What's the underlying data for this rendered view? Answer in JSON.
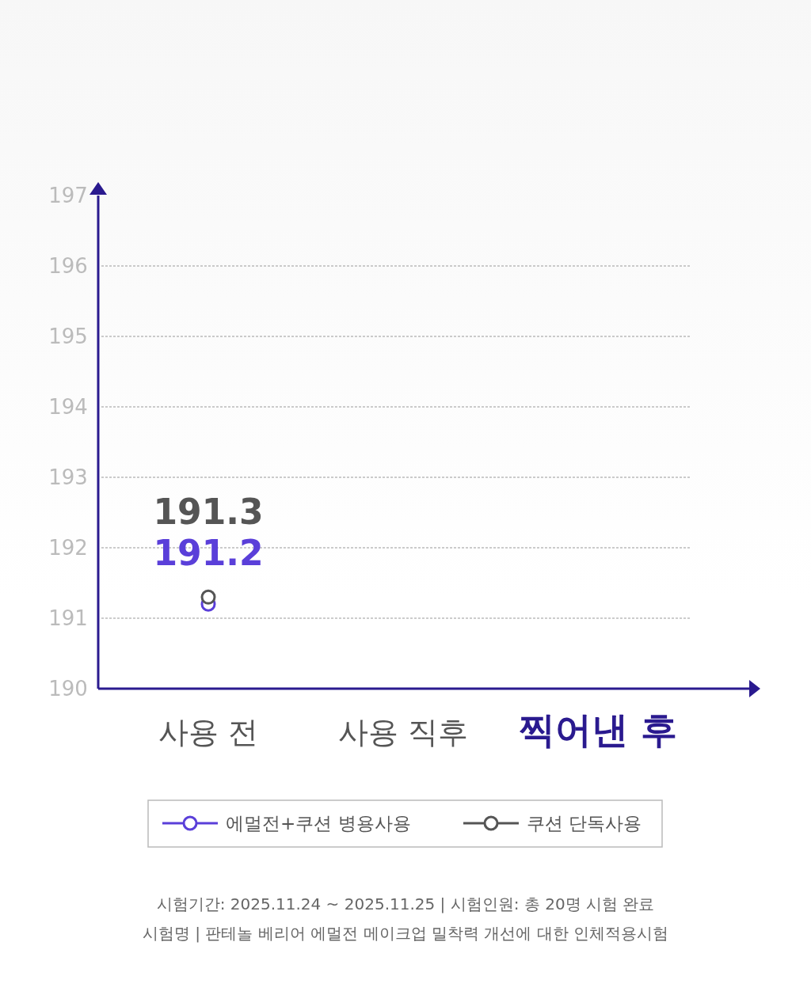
{
  "chart_data": {
    "type": "line",
    "categories": [
      "사용 전",
      "사용 직후",
      "찍어낸 후"
    ],
    "series": [
      {
        "name": "에멀전+쿠션 병용사용",
        "color": "#5a3fd9",
        "values": [
          191.2,
          null,
          null
        ]
      },
      {
        "name": "쿠션 단독사용",
        "color": "#555555",
        "values": [
          191.3,
          null,
          null
        ]
      }
    ],
    "ylim": [
      190,
      197
    ],
    "yticks": [
      190,
      191,
      192,
      193,
      194,
      195,
      196,
      197
    ],
    "grid": "y",
    "legend": "bottom",
    "marker": "circle",
    "line_style": "solid",
    "data_labels": true,
    "annotations": [
      "시험기간: 2025.11.24 ~ 2025.11.25 | 시험인원: 총 20명 시험 완료",
      "시험명 | 판테놀 베리어 에멀전 메이크업 밀착력 개선에 대한 인체적용시험"
    ]
  }
}
